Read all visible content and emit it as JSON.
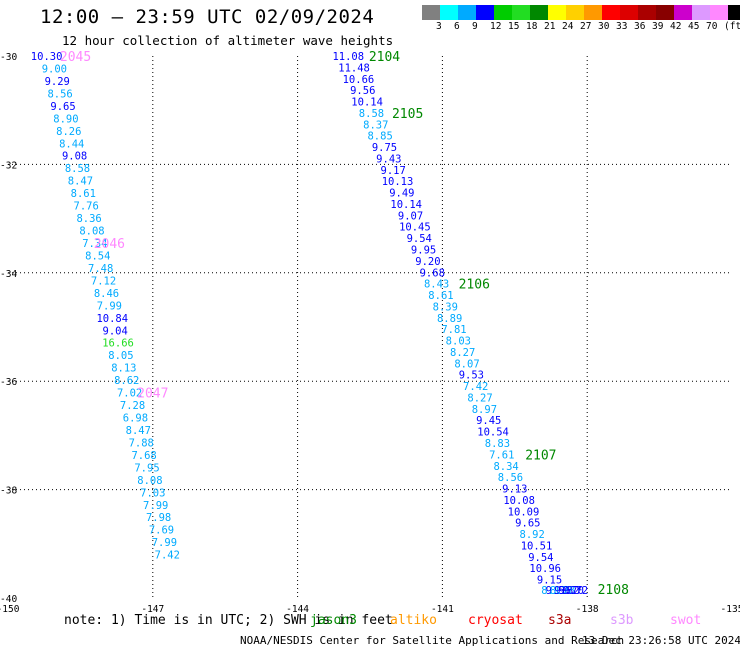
{
  "title": "12:00 – 23:59 UTC 02/09/2024",
  "subtitle": "12 hour collection of altimeter wave heights",
  "colorbar": {
    "unit": "(ft)",
    "labels": [
      "3",
      "6",
      "9",
      "12",
      "15",
      "18",
      "21",
      "24",
      "27",
      "30",
      "33",
      "36",
      "39",
      "42",
      "45",
      "70"
    ],
    "colors": [
      "#808080",
      "#00ffff",
      "#00aaff",
      "#0000ff",
      "#00cc00",
      "#22dd22",
      "#008800",
      "#ffff00",
      "#ffd000",
      "#ff9900",
      "#ff0000",
      "#dd0000",
      "#aa0000",
      "#880000",
      "#cc00cc",
      "#dd99ff",
      "#ff88ff",
      "#000000"
    ]
  },
  "footer": {
    "note": "note:  1) Time is in UTC; 2) SWH is in feet",
    "satellites": [
      {
        "name": "jason3",
        "color": "#008800"
      },
      {
        "name": "altiko",
        "color": "#ff9900"
      },
      {
        "name": "cryosat",
        "color": "#ff0000"
      },
      {
        "name": "s3a",
        "color": "#aa0000"
      },
      {
        "name": "s3b",
        "color": "#dd99ff"
      },
      {
        "name": "swot",
        "color": "#ff88ff"
      }
    ],
    "credit": "NOAA/NESDIS Center for Satellite Applications and Research",
    "timestamp": "13 Dec 23:26:58 UTC 2024"
  },
  "chart_data": {
    "type": "scatter",
    "title": "12:00 – 23:59 UTC 02/09/2024",
    "xlim": [
      -150,
      -135
    ],
    "ylim": [
      -40,
      -30
    ],
    "xticks": [
      "-150",
      "-147",
      "-144",
      "-141",
      "-138",
      "-135"
    ],
    "yticks": [
      "-30",
      "-32",
      "-34",
      "-36",
      "-38",
      "-40"
    ],
    "grid": true,
    "tracks": [
      {
        "points": [
          {
            "x": -149.2,
            "y": -30.0,
            "label": "10.30",
            "color": "#0000ff"
          },
          {
            "x": -149.04,
            "y": -30.23,
            "label": "9.00",
            "color": "#00aaff"
          },
          {
            "x": -148.98,
            "y": -30.46,
            "label": "9.29",
            "color": "#0000ff"
          },
          {
            "x": -148.92,
            "y": -30.69,
            "label": "8.56",
            "color": "#00aaff"
          },
          {
            "x": -148.86,
            "y": -30.92,
            "label": "9.65",
            "color": "#0000ff"
          },
          {
            "x": -148.8,
            "y": -31.15,
            "label": "8.90",
            "color": "#00aaff"
          },
          {
            "x": -148.74,
            "y": -31.38,
            "label": "8.26",
            "color": "#00aaff"
          },
          {
            "x": -148.68,
            "y": -31.61,
            "label": "8.44",
            "color": "#00aaff"
          },
          {
            "x": -148.62,
            "y": -31.84,
            "label": "9.08",
            "color": "#0000ff"
          },
          {
            "x": -148.56,
            "y": -32.07,
            "label": "8.58",
            "color": "#00aaff"
          },
          {
            "x": -148.5,
            "y": -32.3,
            "label": "8.47",
            "color": "#00aaff"
          },
          {
            "x": -148.44,
            "y": -32.53,
            "label": "8.61",
            "color": "#00aaff"
          },
          {
            "x": -148.38,
            "y": -32.76,
            "label": "7.76",
            "color": "#00aaff"
          },
          {
            "x": -148.32,
            "y": -32.99,
            "label": "8.36",
            "color": "#00aaff"
          },
          {
            "x": -148.26,
            "y": -33.22,
            "label": "8.08",
            "color": "#00aaff"
          },
          {
            "x": -148.2,
            "y": -33.45,
            "label": "7.34",
            "color": "#00aaff"
          },
          {
            "x": -148.14,
            "y": -33.68,
            "label": "8.54",
            "color": "#00aaff"
          },
          {
            "x": -148.08,
            "y": -33.91,
            "label": "7.48",
            "color": "#00aaff"
          },
          {
            "x": -148.02,
            "y": -34.14,
            "label": "7.12",
            "color": "#00aaff"
          },
          {
            "x": -147.96,
            "y": -34.37,
            "label": "8.46",
            "color": "#00aaff"
          },
          {
            "x": -147.9,
            "y": -34.6,
            "label": "7.99",
            "color": "#00aaff"
          },
          {
            "x": -147.84,
            "y": -34.83,
            "label": "10.84",
            "color": "#0000ff"
          },
          {
            "x": -147.78,
            "y": -35.06,
            "label": "9.04",
            "color": "#0000ff"
          },
          {
            "x": -147.72,
            "y": -35.29,
            "label": "16.66",
            "color": "#22dd22"
          },
          {
            "x": -147.66,
            "y": -35.52,
            "label": "8.05",
            "color": "#00aaff"
          },
          {
            "x": -147.6,
            "y": -35.75,
            "label": "8.13",
            "color": "#00aaff"
          },
          {
            "x": -147.54,
            "y": -35.98,
            "label": "8.62",
            "color": "#00aaff"
          },
          {
            "x": -147.48,
            "y": -36.21,
            "label": "7.02",
            "color": "#00aaff"
          },
          {
            "x": -147.42,
            "y": -36.44,
            "label": "7.28",
            "color": "#00aaff"
          },
          {
            "x": -147.36,
            "y": -36.67,
            "label": "6.98",
            "color": "#00aaff"
          },
          {
            "x": -147.3,
            "y": -36.9,
            "label": "8.47",
            "color": "#00aaff"
          },
          {
            "x": -147.24,
            "y": -37.13,
            "label": "7.88",
            "color": "#00aaff"
          },
          {
            "x": -147.18,
            "y": -37.36,
            "label": "7.68",
            "color": "#00aaff"
          },
          {
            "x": -147.12,
            "y": -37.59,
            "label": "7.95",
            "color": "#00aaff"
          },
          {
            "x": -147.06,
            "y": -37.82,
            "label": "8.08",
            "color": "#00aaff"
          },
          {
            "x": -147.0,
            "y": -38.05,
            "label": "7.03",
            "color": "#00aaff"
          },
          {
            "x": -146.94,
            "y": -38.28,
            "label": "7.99",
            "color": "#00aaff"
          },
          {
            "x": -146.88,
            "y": -38.51,
            "label": "7.98",
            "color": "#00aaff"
          },
          {
            "x": -146.82,
            "y": -38.74,
            "label": "7.69",
            "color": "#00aaff"
          },
          {
            "x": -146.76,
            "y": -38.97,
            "label": "7.99",
            "color": "#00aaff"
          },
          {
            "x": -146.7,
            "y": -39.2,
            "label": "7.42",
            "color": "#00aaff"
          }
        ],
        "markers": [
          {
            "x": -148.6,
            "y": -30.0,
            "label": "2045",
            "color": "#ff88ff"
          },
          {
            "x": -147.9,
            "y": -33.45,
            "label": "2046",
            "color": "#ff88ff"
          },
          {
            "x": -147.0,
            "y": -36.21,
            "label": "2047",
            "color": "#ff88ff"
          }
        ]
      },
      {
        "points": [
          {
            "x": -142.95,
            "y": -30.0,
            "label": "11.08",
            "color": "#0000ff"
          },
          {
            "x": -142.83,
            "y": -30.21,
            "label": "11.48",
            "color": "#0000ff"
          },
          {
            "x": -142.74,
            "y": -30.42,
            "label": "10.66",
            "color": "#0000ff"
          },
          {
            "x": -142.65,
            "y": -30.63,
            "label": "9.56",
            "color": "#0000ff"
          },
          {
            "x": -142.56,
            "y": -30.84,
            "label": "10.14",
            "color": "#0000ff"
          },
          {
            "x": -142.47,
            "y": -31.05,
            "label": "8.58",
            "color": "#00aaff"
          },
          {
            "x": -142.38,
            "y": -31.26,
            "label": "8.37",
            "color": "#00aaff"
          },
          {
            "x": -142.29,
            "y": -31.47,
            "label": "8.85",
            "color": "#00aaff"
          },
          {
            "x": -142.2,
            "y": -31.68,
            "label": "9.75",
            "color": "#0000ff"
          },
          {
            "x": -142.11,
            "y": -31.89,
            "label": "9.43",
            "color": "#0000ff"
          },
          {
            "x": -142.02,
            "y": -32.1,
            "label": "9.17",
            "color": "#0000ff"
          },
          {
            "x": -141.93,
            "y": -32.31,
            "label": "10.13",
            "color": "#0000ff"
          },
          {
            "x": -141.84,
            "y": -32.52,
            "label": "9.49",
            "color": "#0000ff"
          },
          {
            "x": -141.75,
            "y": -32.73,
            "label": "10.14",
            "color": "#0000ff"
          },
          {
            "x": -141.66,
            "y": -32.94,
            "label": "9.07",
            "color": "#0000ff"
          },
          {
            "x": -141.57,
            "y": -33.15,
            "label": "10.45",
            "color": "#0000ff"
          },
          {
            "x": -141.48,
            "y": -33.36,
            "label": "9.54",
            "color": "#0000ff"
          },
          {
            "x": -141.39,
            "y": -33.57,
            "label": "9.95",
            "color": "#0000ff"
          },
          {
            "x": -141.3,
            "y": -33.78,
            "label": "9.20",
            "color": "#0000ff"
          },
          {
            "x": -141.21,
            "y": -33.99,
            "label": "9.68",
            "color": "#0000ff"
          },
          {
            "x": -141.12,
            "y": -34.2,
            "label": "8.43",
            "color": "#00aaff"
          },
          {
            "x": -141.03,
            "y": -34.41,
            "label": "8.61",
            "color": "#00aaff"
          },
          {
            "x": -140.94,
            "y": -34.62,
            "label": "8.39",
            "color": "#00aaff"
          },
          {
            "x": -140.85,
            "y": -34.83,
            "label": "8.89",
            "color": "#00aaff"
          },
          {
            "x": -140.76,
            "y": -35.04,
            "label": "7.81",
            "color": "#00aaff"
          },
          {
            "x": -140.67,
            "y": -35.25,
            "label": "8.03",
            "color": "#00aaff"
          },
          {
            "x": -140.58,
            "y": -35.46,
            "label": "8.27",
            "color": "#00aaff"
          },
          {
            "x": -140.49,
            "y": -35.67,
            "label": "8.07",
            "color": "#00aaff"
          },
          {
            "x": -140.4,
            "y": -35.88,
            "label": "9.53",
            "color": "#0000ff"
          },
          {
            "x": -140.31,
            "y": -36.09,
            "label": "7.42",
            "color": "#00aaff"
          },
          {
            "x": -140.22,
            "y": -36.3,
            "label": "8.27",
            "color": "#00aaff"
          },
          {
            "x": -140.13,
            "y": -36.51,
            "label": "8.97",
            "color": "#00aaff"
          },
          {
            "x": -140.04,
            "y": -36.72,
            "label": "9.45",
            "color": "#0000ff"
          },
          {
            "x": -139.95,
            "y": -36.93,
            "label": "10.54",
            "color": "#0000ff"
          },
          {
            "x": -139.86,
            "y": -37.14,
            "label": "8.83",
            "color": "#00aaff"
          },
          {
            "x": -139.77,
            "y": -37.35,
            "label": "7.61",
            "color": "#00aaff"
          },
          {
            "x": -139.68,
            "y": -37.56,
            "label": "8.34",
            "color": "#00aaff"
          },
          {
            "x": -139.59,
            "y": -37.77,
            "label": "8.56",
            "color": "#00aaff"
          },
          {
            "x": -139.5,
            "y": -37.98,
            "label": "9.13",
            "color": "#0000ff"
          },
          {
            "x": -139.41,
            "y": -38.19,
            "label": "10.08",
            "color": "#0000ff"
          },
          {
            "x": -139.32,
            "y": -38.4,
            "label": "10.09",
            "color": "#0000ff"
          },
          {
            "x": -139.23,
            "y": -38.61,
            "label": "9.65",
            "color": "#0000ff"
          },
          {
            "x": -139.14,
            "y": -38.82,
            "label": "8.92",
            "color": "#00aaff"
          },
          {
            "x": -139.05,
            "y": -39.03,
            "label": "10.51",
            "color": "#0000ff"
          },
          {
            "x": -138.96,
            "y": -39.24,
            "label": "9.54",
            "color": "#0000ff"
          },
          {
            "x": -138.87,
            "y": -39.45,
            "label": "10.96",
            "color": "#0000ff"
          },
          {
            "x": -138.78,
            "y": -39.66,
            "label": "9.15",
            "color": "#0000ff"
          },
          {
            "x": -138.69,
            "y": -39.87,
            "label": "8.11",
            "color": "#00aaff"
          },
          {
            "x": -138.6,
            "y": -40.08,
            "label": "9.56",
            "color": "#0000ff"
          },
          {
            "x": -138.51,
            "y": -40.29,
            "label": "8.78",
            "color": "#00aaff"
          },
          {
            "x": -138.42,
            "y": -40.5,
            "label": "9.82",
            "color": "#0000ff"
          },
          {
            "x": -138.33,
            "y": -40.71,
            "label": "9.70",
            "color": "#0000ff"
          },
          {
            "x": -138.24,
            "y": -40.92,
            "label": "9.72",
            "color": "#0000ff"
          }
        ],
        "markers": [
          {
            "x": -142.2,
            "y": -30.0,
            "label": "2104",
            "color": "#008800"
          },
          {
            "x": -141.72,
            "y": -31.05,
            "label": "2105",
            "color": "#008800"
          },
          {
            "x": -140.34,
            "y": -34.2,
            "label": "2106",
            "color": "#008800"
          },
          {
            "x": -138.96,
            "y": -37.35,
            "label": "2107",
            "color": "#008800"
          },
          {
            "x": -137.46,
            "y": -40.29,
            "label": "2108",
            "color": "#008800"
          }
        ]
      }
    ]
  }
}
